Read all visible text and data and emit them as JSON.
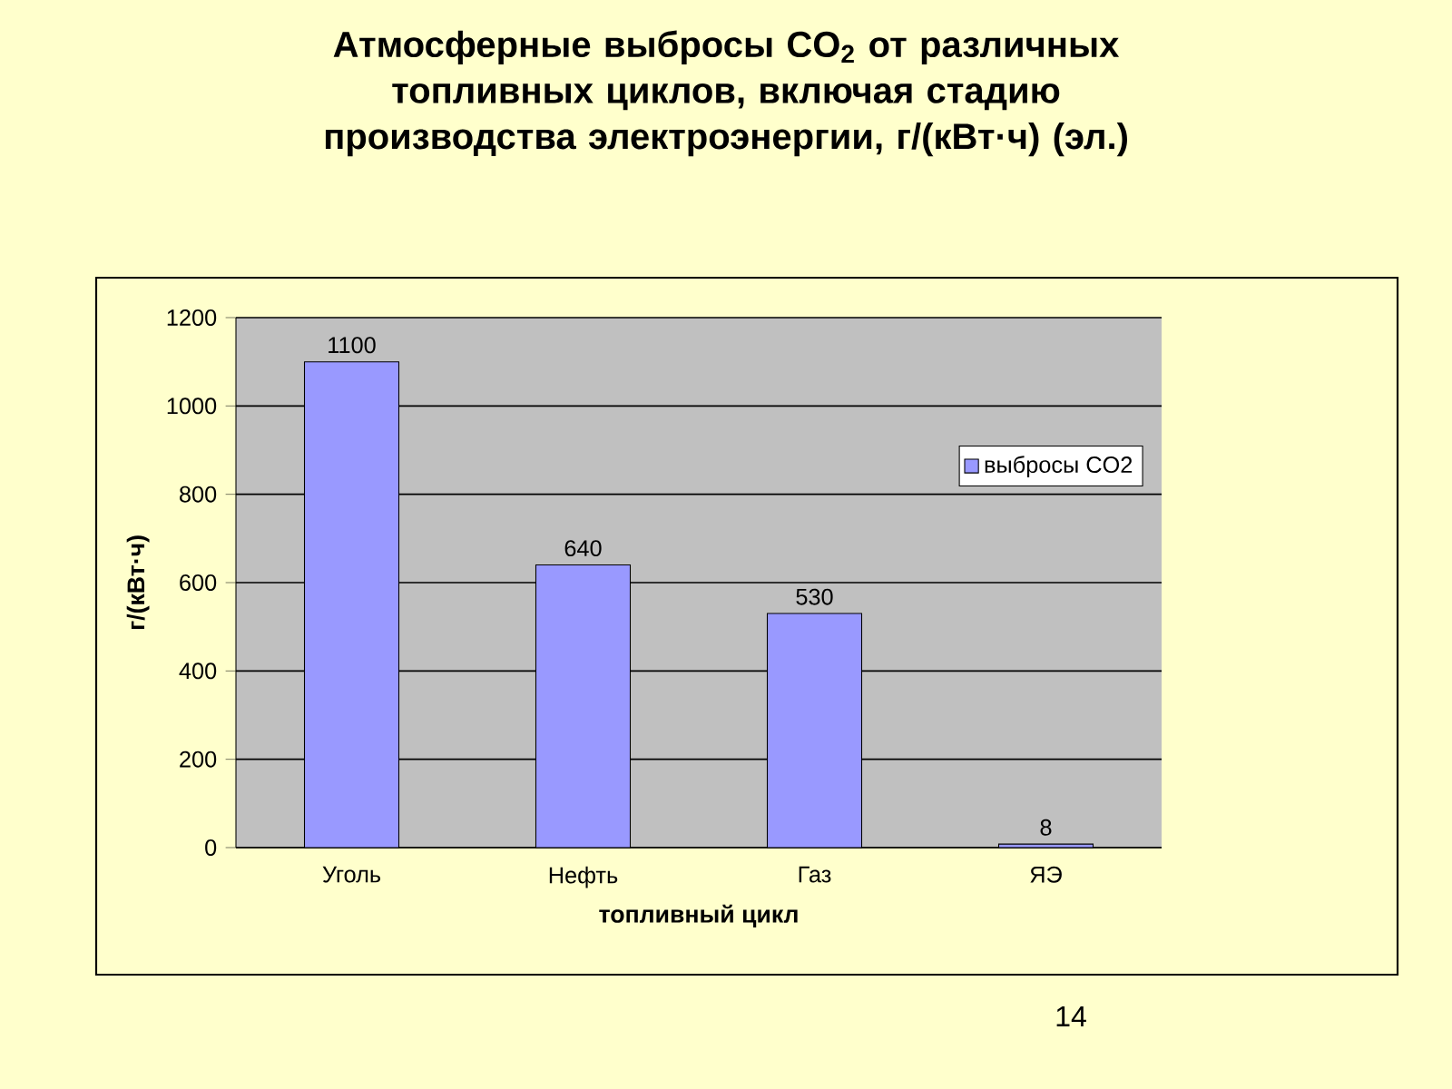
{
  "chart_data": {
    "type": "bar",
    "title": "Атмосферные выбросы CO$_{2}$ от различных топливных циклов, включая стадию производства электроэнергии, г/(кВт·ч) (эл.)",
    "xlabel": "топливный цикл",
    "ylabel": "г/(кВт·ч)",
    "categories": [
      "Уголь",
      "Нефть",
      "Газ",
      "ЯЭ"
    ],
    "series": [
      {
        "name": "выбросы CO2",
        "color": "#9999ff",
        "values": [
          1100,
          640,
          530,
          8
        ]
      }
    ],
    "ylim": [
      0,
      1200
    ],
    "yticks": [
      0,
      200,
      400,
      600,
      800,
      1000,
      1200
    ],
    "grid": "y",
    "legend": "right",
    "data_labels": true,
    "annotations": [
      "14"
    ]
  }
}
